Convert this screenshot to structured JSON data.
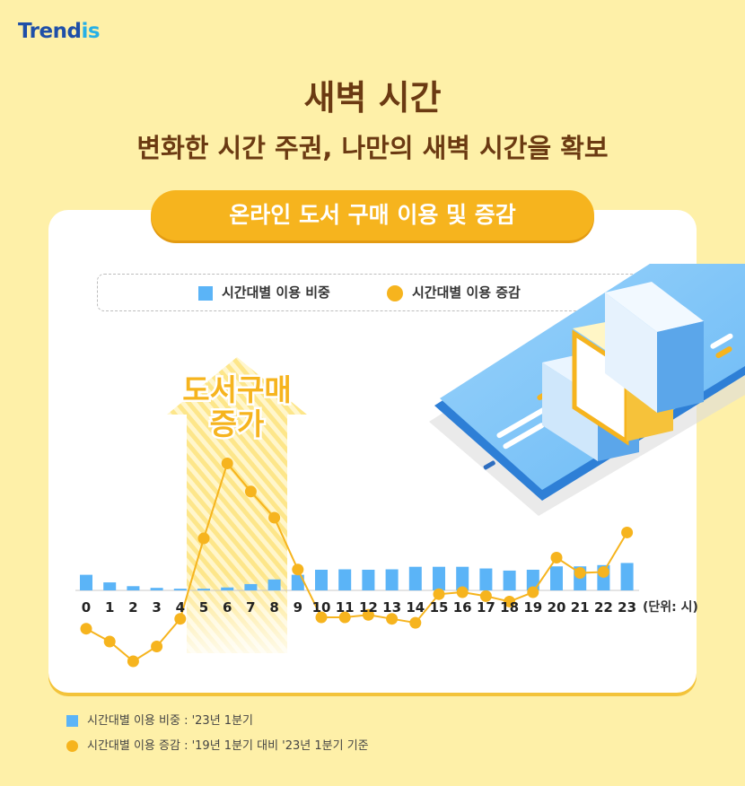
{
  "logo": {
    "text_main": "Trend",
    "text_accent": "is"
  },
  "header": {
    "title": "새벽 시간",
    "subtitle": "변화한 시간 주권, 나만의 새벽 시간을 확보"
  },
  "pill_label": "온라인 도서 구매 이용 및 증감",
  "legend": {
    "bar_label": "시간대별 이용 비중",
    "dot_label": "시간대별 이용 증감"
  },
  "annotation": {
    "line1": "도서구매",
    "line2": "증가"
  },
  "footnotes": [
    "시간대별 이용 비중 : '23년 1분기",
    "시간대별 이용 증감 : '19년 1분기 대비 '23년 1분기 기준"
  ],
  "colors": {
    "bar": "#5BB4F7",
    "dot": "#F6B41E",
    "title": "#6B3A12"
  },
  "chart_data": {
    "type": "bar",
    "categories": [
      "0",
      "1",
      "2",
      "3",
      "4",
      "5",
      "6",
      "7",
      "8",
      "9",
      "10",
      "11",
      "12",
      "13",
      "14",
      "15",
      "16",
      "17",
      "18",
      "19",
      "20",
      "21",
      "22",
      "23"
    ],
    "unit_label": "(단위: 시)",
    "series": [
      {
        "name": "시간대별 이용 비중",
        "type": "bar",
        "values": [
          3.7,
          1.9,
          1.0,
          0.6,
          0.4,
          0.4,
          0.7,
          1.5,
          2.6,
          3.7,
          4.9,
          5.0,
          4.9,
          5.0,
          5.6,
          5.6,
          5.6,
          5.2,
          4.7,
          4.9,
          5.7,
          5.7,
          6.0,
          6.5
        ]
      },
      {
        "name": "시간대별 이용 증감",
        "type": "line",
        "values": [
          -7.4,
          -10.0,
          -14.0,
          -11.0,
          -5.4,
          10.9,
          26.1,
          20.4,
          15.1,
          4.6,
          -5.1,
          -5.1,
          -4.6,
          -5.4,
          -6.2,
          -0.4,
          0.0,
          -0.8,
          -1.9,
          0.0,
          7.0,
          3.9,
          4.1,
          12.1
        ]
      }
    ]
  }
}
